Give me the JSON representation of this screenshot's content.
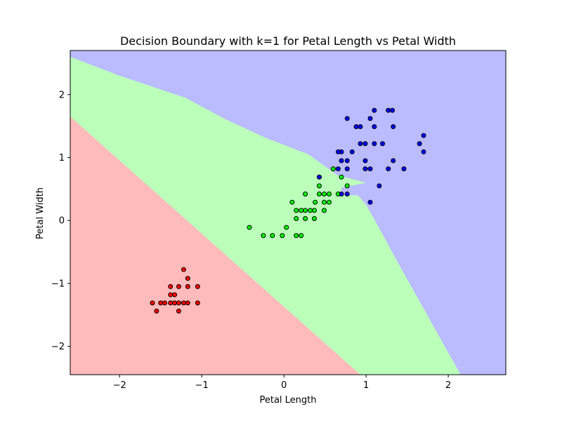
{
  "chart_data": {
    "type": "scatter",
    "title": "Decision Boundary with k=1 for Petal Length vs Petal Width",
    "xlabel": "Petal Length",
    "ylabel": "Petal Width",
    "xlim": [
      -2.6,
      2.7
    ],
    "ylim": [
      -2.45,
      2.7
    ],
    "x_ticks": [
      -2,
      -1,
      0,
      1,
      2
    ],
    "y_ticks": [
      -2,
      -1,
      0,
      1,
      2
    ],
    "x_tick_labels": [
      "−2",
      "−1",
      "0",
      "1",
      "2"
    ],
    "y_tick_labels": [
      "−2",
      "−1",
      "0",
      "1",
      "2"
    ],
    "grid": false,
    "legend": "none",
    "regions": [
      {
        "class": 0,
        "color": "#ffbbbb",
        "boundary_x_at_bottom": 0.93,
        "boundary_y_at_left": 1.65
      },
      {
        "class": 1,
        "color": "#bbffbb"
      },
      {
        "class": 2,
        "color": "#bbbbff",
        "boundary": [
          [
            -2.6,
            2.6
          ],
          [
            -2.0,
            2.3
          ],
          [
            -1.2,
            1.95
          ],
          [
            -0.7,
            1.6
          ],
          [
            -0.2,
            1.3
          ],
          [
            0.3,
            1.05
          ],
          [
            0.65,
            0.72
          ],
          [
            1.0,
            0.6
          ],
          [
            0.7,
            0.52
          ],
          [
            0.7,
            0.4
          ],
          [
            0.9,
            0.4
          ],
          [
            1.0,
            0.25
          ],
          [
            1.15,
            -0.1
          ],
          [
            1.4,
            -0.7
          ],
          [
            1.7,
            -1.4
          ],
          [
            2.0,
            -2.1
          ],
          [
            2.15,
            -2.45
          ]
        ]
      }
    ],
    "series": [
      {
        "class": 0,
        "color": "#ff0000",
        "points": [
          [
            -1.22,
            -0.78
          ],
          [
            -1.17,
            -0.92
          ],
          [
            -1.28,
            -1.05
          ],
          [
            -1.05,
            -1.05
          ],
          [
            -1.38,
            -1.05
          ],
          [
            -1.17,
            -1.05
          ],
          [
            -1.38,
            -1.18
          ],
          [
            -1.33,
            -1.18
          ],
          [
            -1.6,
            -1.31
          ],
          [
            -1.5,
            -1.31
          ],
          [
            -1.45,
            -1.31
          ],
          [
            -1.38,
            -1.31
          ],
          [
            -1.33,
            -1.31
          ],
          [
            -1.28,
            -1.31
          ],
          [
            -1.22,
            -1.31
          ],
          [
            -1.17,
            -1.31
          ],
          [
            -1.05,
            -1.31
          ],
          [
            -1.55,
            -1.44
          ],
          [
            -1.28,
            -1.44
          ]
        ]
      },
      {
        "class": 1,
        "color": "#00ff00",
        "points": [
          [
            -0.42,
            -0.11
          ],
          [
            -0.25,
            -0.24
          ],
          [
            -0.14,
            -0.24
          ],
          [
            -0.02,
            -0.24
          ],
          [
            0.03,
            -0.11
          ],
          [
            0.15,
            -0.24
          ],
          [
            0.21,
            -0.24
          ],
          [
            0.1,
            0.29
          ],
          [
            0.15,
            0.16
          ],
          [
            0.21,
            0.16
          ],
          [
            0.26,
            0.16
          ],
          [
            0.32,
            0.16
          ],
          [
            0.37,
            0.16
          ],
          [
            0.15,
            0.03
          ],
          [
            0.26,
            0.03
          ],
          [
            0.37,
            0.03
          ],
          [
            0.26,
            0.42
          ],
          [
            0.38,
            0.29
          ],
          [
            0.43,
            0.42
          ],
          [
            0.49,
            0.42
          ],
          [
            0.55,
            0.42
          ],
          [
            0.43,
            0.55
          ],
          [
            0.49,
            0.29
          ],
          [
            0.55,
            0.29
          ],
          [
            0.49,
            0.16
          ],
          [
            0.66,
            0.42
          ],
          [
            0.7,
            0.69
          ],
          [
            0.6,
            0.82
          ],
          [
            0.77,
            0.55
          ],
          [
            0.43,
            0.69
          ]
        ]
      },
      {
        "class": 2,
        "color": "#0000ff",
        "points": [
          [
            0.43,
            0.69
          ],
          [
            0.66,
            0.82
          ],
          [
            0.66,
            1.09
          ],
          [
            0.7,
            0.95
          ],
          [
            0.7,
            1.09
          ],
          [
            0.77,
            0.82
          ],
          [
            0.77,
            0.95
          ],
          [
            0.77,
            1.62
          ],
          [
            0.83,
            1.09
          ],
          [
            0.88,
            1.49
          ],
          [
            0.93,
            1.49
          ],
          [
            0.93,
            1.22
          ],
          [
            0.99,
            1.22
          ],
          [
            0.99,
            0.95
          ],
          [
            0.99,
            0.82
          ],
          [
            1.05,
            0.82
          ],
          [
            1.05,
            1.62
          ],
          [
            1.1,
            1.75
          ],
          [
            1.1,
            1.49
          ],
          [
            1.1,
            1.22
          ],
          [
            1.16,
            0.55
          ],
          [
            1.2,
            1.22
          ],
          [
            1.27,
            1.75
          ],
          [
            1.32,
            1.75
          ],
          [
            1.33,
            1.49
          ],
          [
            1.33,
            0.95
          ],
          [
            1.27,
            0.82
          ],
          [
            1.46,
            0.82
          ],
          [
            1.65,
            1.22
          ],
          [
            1.7,
            1.35
          ],
          [
            1.7,
            1.09
          ],
          [
            1.05,
            0.29
          ],
          [
            0.7,
            0.42
          ],
          [
            0.77,
            0.42
          ]
        ]
      }
    ]
  }
}
